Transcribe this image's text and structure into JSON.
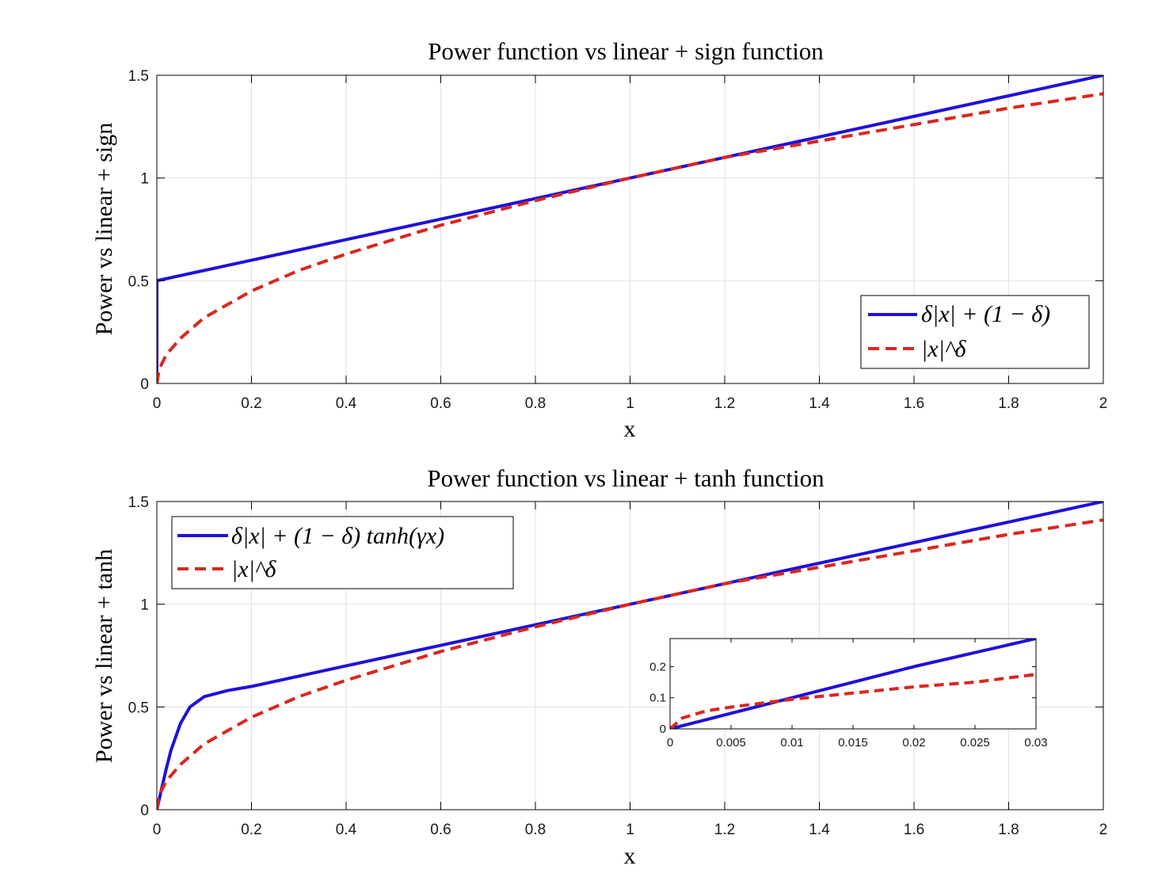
{
  "chart_data": [
    {
      "type": "line",
      "title": "Power function vs linear + sign function",
      "xlabel": "x",
      "ylabel": "Power vs linear + sign",
      "xlim": [
        0,
        2
      ],
      "ylim": [
        0,
        1.5
      ],
      "xticks": [
        "0",
        "0.2",
        "0.4",
        "0.6",
        "0.8",
        "1",
        "1.2",
        "1.4",
        "1.6",
        "1.8",
        "2"
      ],
      "yticks": [
        "0",
        "0.5",
        "1",
        "1.5"
      ],
      "grid": true,
      "legend_position": "bottom-right",
      "series": [
        {
          "name": "δ|x| + (1 − δ)",
          "color": "#1f11d6",
          "style": "solid",
          "x": [
            0,
            0.0001,
            0.2,
            0.4,
            0.6,
            0.8,
            1.0,
            1.2,
            1.4,
            1.6,
            1.8,
            2.0
          ],
          "y": [
            0,
            0.5,
            0.6,
            0.7,
            0.8,
            0.9,
            1.0,
            1.1,
            1.2,
            1.3,
            1.4,
            1.5
          ]
        },
        {
          "name": "|x|^δ",
          "color": "#d9271f",
          "style": "dashed",
          "x": [
            0,
            0.005,
            0.02,
            0.05,
            0.1,
            0.2,
            0.3,
            0.4,
            0.6,
            0.8,
            1.0,
            1.2,
            1.4,
            1.6,
            1.8,
            2.0
          ],
          "y": [
            0,
            0.07,
            0.14,
            0.22,
            0.32,
            0.45,
            0.55,
            0.63,
            0.77,
            0.89,
            1.0,
            1.1,
            1.18,
            1.26,
            1.34,
            1.41
          ]
        }
      ]
    },
    {
      "type": "line",
      "title": "Power function vs linear + tanh function",
      "xlabel": "x",
      "ylabel": "Power vs linear + tanh",
      "xlim": [
        0,
        2
      ],
      "ylim": [
        0,
        1.5
      ],
      "xticks": [
        "0",
        "0.2",
        "0.4",
        "0.6",
        "0.8",
        "1",
        "1.2",
        "1.4",
        "1.6",
        "1.8",
        "2"
      ],
      "yticks": [
        "0",
        "0.5",
        "1",
        "1.5"
      ],
      "grid": true,
      "legend_position": "top-left",
      "series": [
        {
          "name": "δ|x| + (1 − δ) tanh(γx)",
          "color": "#1f11d6",
          "style": "solid",
          "x": [
            0,
            0.01,
            0.02,
            0.03,
            0.05,
            0.07,
            0.1,
            0.15,
            0.2,
            0.4,
            0.6,
            0.8,
            1.0,
            1.2,
            1.4,
            1.6,
            1.8,
            2.0
          ],
          "y": [
            0,
            0.1,
            0.2,
            0.29,
            0.42,
            0.5,
            0.55,
            0.58,
            0.6,
            0.7,
            0.8,
            0.9,
            1.0,
            1.1,
            1.2,
            1.3,
            1.4,
            1.5
          ]
        },
        {
          "name": "|x|^δ",
          "color": "#d9271f",
          "style": "dashed",
          "x": [
            0,
            0.005,
            0.02,
            0.05,
            0.1,
            0.2,
            0.3,
            0.4,
            0.6,
            0.8,
            1.0,
            1.2,
            1.4,
            1.6,
            1.8,
            2.0
          ],
          "y": [
            0,
            0.07,
            0.14,
            0.22,
            0.32,
            0.45,
            0.55,
            0.63,
            0.77,
            0.89,
            1.0,
            1.1,
            1.18,
            1.26,
            1.34,
            1.41
          ]
        }
      ],
      "inset": {
        "xlim": [
          0,
          0.03
        ],
        "ylim": [
          0,
          0.29
        ],
        "xticks": [
          "0",
          "0.005",
          "0.01",
          "0.015",
          "0.02",
          "0.025",
          "0.03"
        ],
        "yticks": [
          "0",
          "0.1",
          "0.2"
        ],
        "series": [
          {
            "name": "δ|x| + (1 − δ) tanh(γx)",
            "color": "#1f11d6",
            "style": "solid",
            "x": [
              0,
              0.005,
              0.01,
              0.015,
              0.02,
              0.025,
              0.03
            ],
            "y": [
              0,
              0.05,
              0.1,
              0.15,
              0.2,
              0.245,
              0.29
            ]
          },
          {
            "name": "|x|^δ",
            "color": "#d9271f",
            "style": "dashed",
            "x": [
              0,
              0.001,
              0.003,
              0.005,
              0.008,
              0.01,
              0.015,
              0.02,
              0.025,
              0.03
            ],
            "y": [
              0,
              0.035,
              0.058,
              0.07,
              0.085,
              0.095,
              0.115,
              0.135,
              0.15,
              0.175
            ]
          }
        ]
      }
    }
  ]
}
